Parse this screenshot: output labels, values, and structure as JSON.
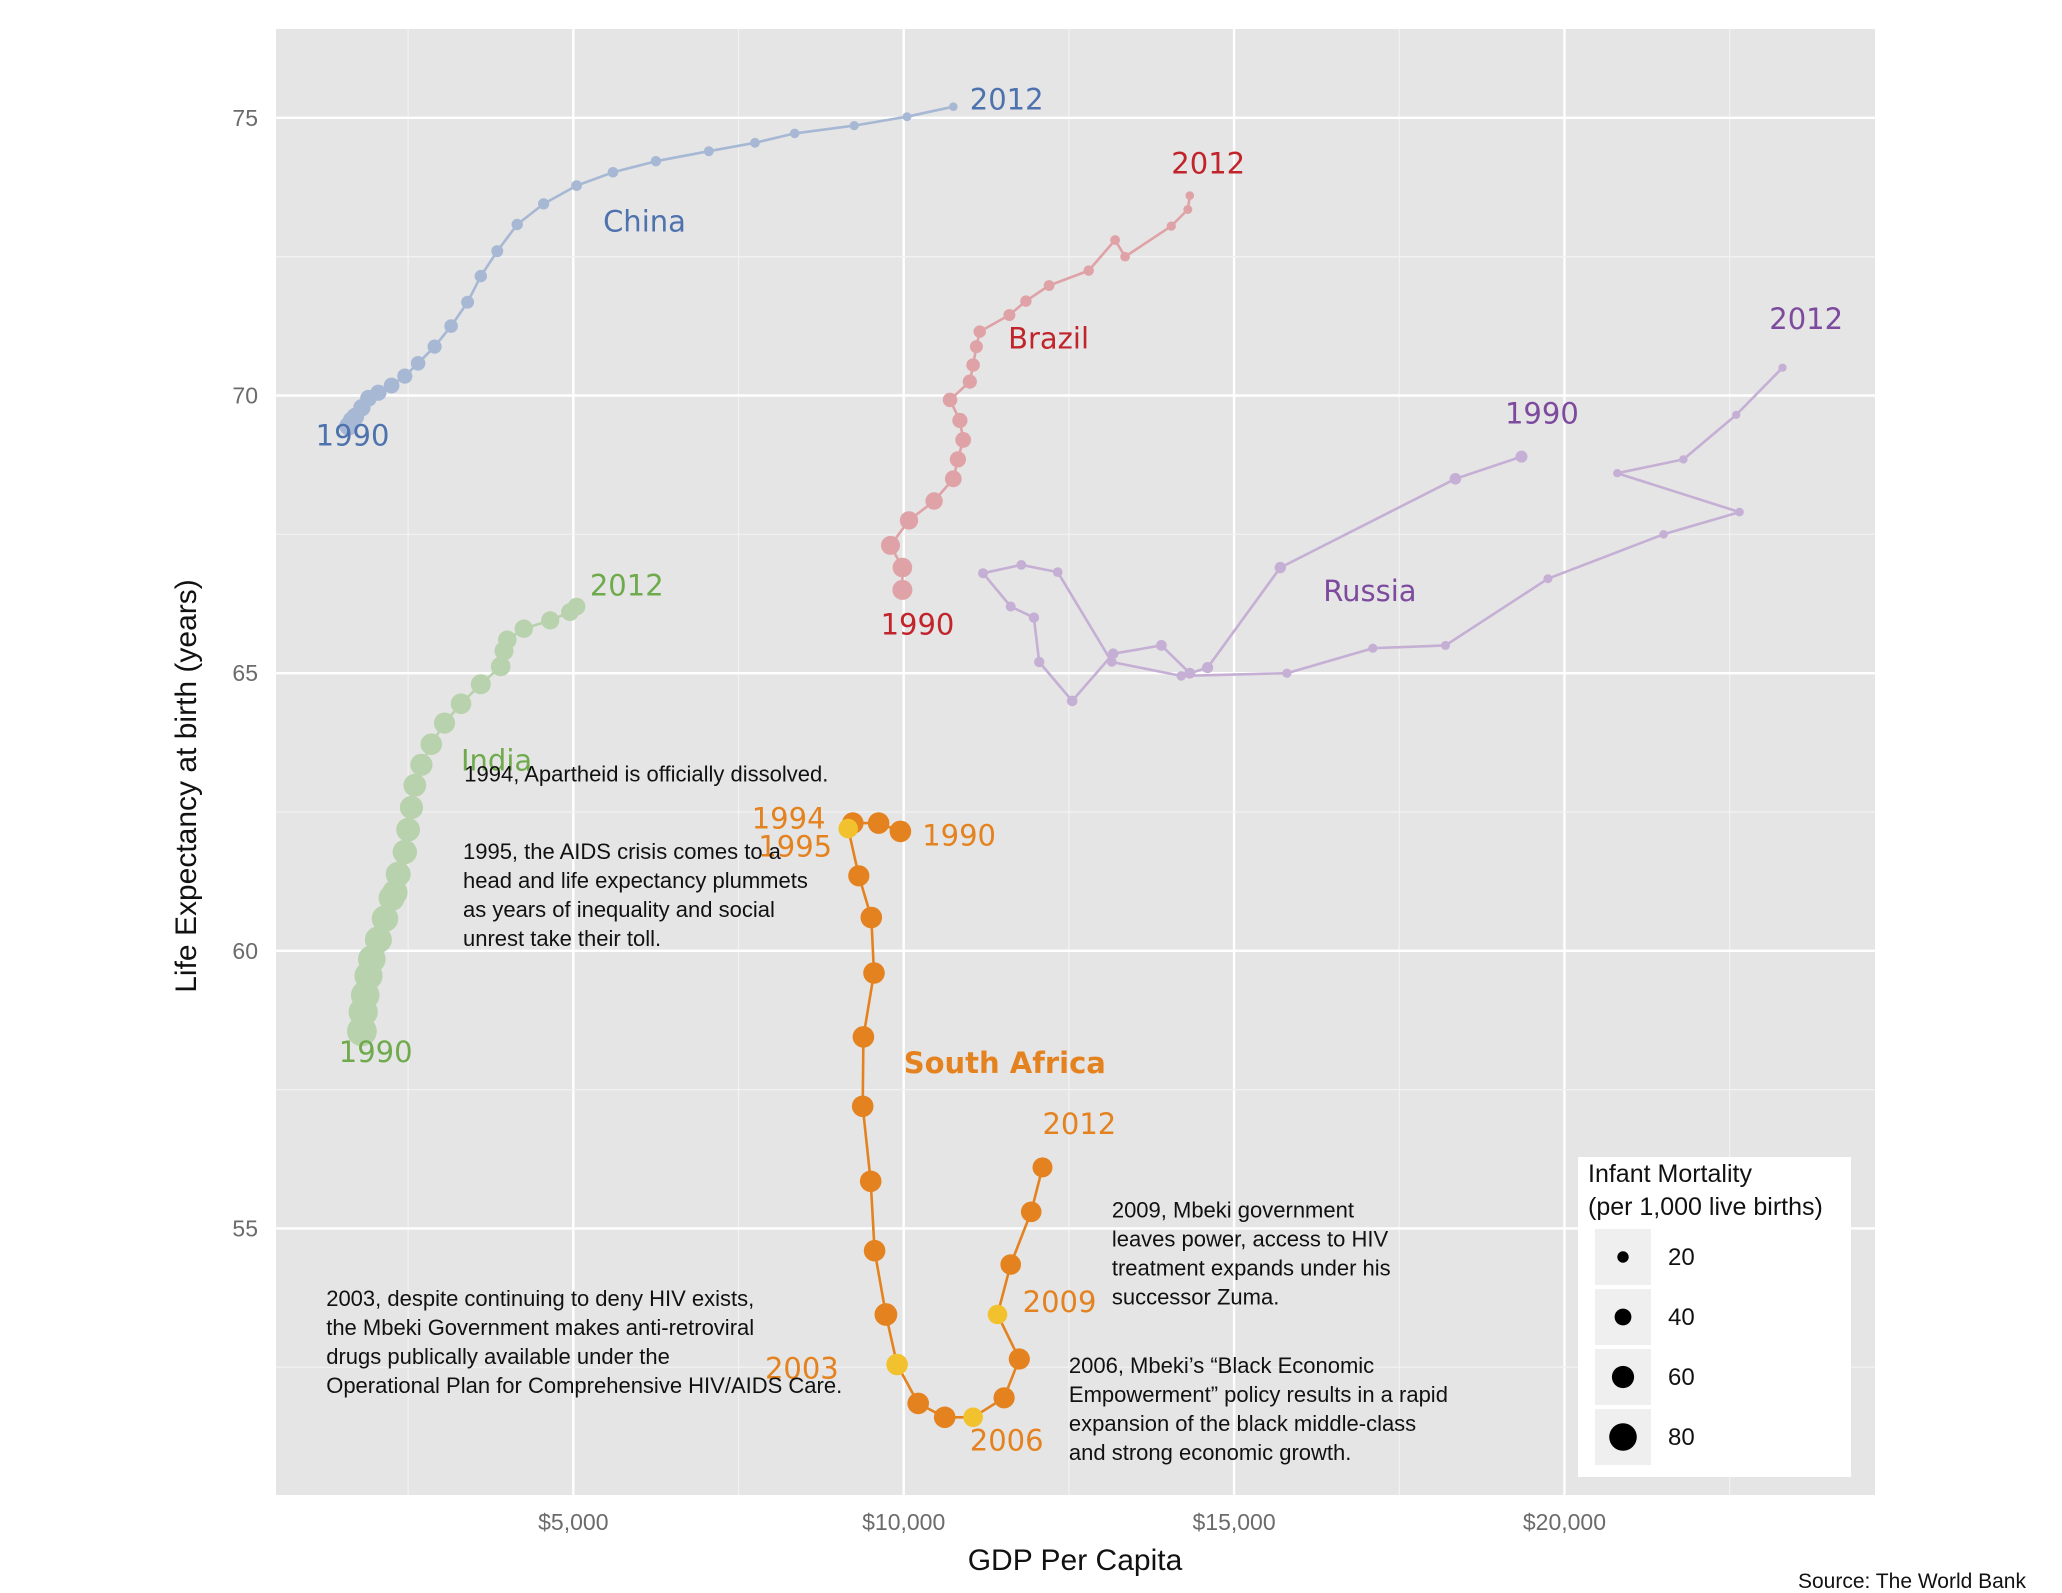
{
  "chart_data": {
    "type": "scatter",
    "xlabel": "GDP Per Capita",
    "ylabel": "Life Expectancy at birth (years)",
    "xlim": [
      500,
      24700
    ],
    "ylim": [
      50.2,
      76.6
    ],
    "x_ticks": [
      {
        "value": 5000,
        "label": "$5,000"
      },
      {
        "value": 10000,
        "label": "$10,000"
      },
      {
        "value": 15000,
        "label": "$15,000"
      },
      {
        "value": 20000,
        "label": "$20,000"
      }
    ],
    "y_ticks": [
      {
        "value": 55,
        "label": "55"
      },
      {
        "value": 60,
        "label": "60"
      },
      {
        "value": 65,
        "label": "65"
      },
      {
        "value": 70,
        "label": "70"
      },
      {
        "value": 75,
        "label": "75"
      }
    ],
    "grid": true,
    "series": [
      {
        "name": "China",
        "color": "#a7b8d4",
        "label_color": "#4d72ad",
        "x": [
          1600,
          1650,
          1700,
          1800,
          1900,
          2050,
          2250,
          2450,
          2650,
          2900,
          3150,
          3400,
          3600,
          3850,
          4150,
          4550,
          5050,
          5600,
          6250,
          7050,
          7750,
          8350,
          9250,
          10050,
          10750
        ],
        "y": [
          69.45,
          69.55,
          69.62,
          69.78,
          69.95,
          70.05,
          70.18,
          70.35,
          70.58,
          70.88,
          71.25,
          71.68,
          72.15,
          72.6,
          73.08,
          73.45,
          73.78,
          74.02,
          74.22,
          74.4,
          74.55,
          74.72,
          74.86,
          75.02,
          75.2
        ],
        "im": [
          48,
          46,
          44,
          42,
          40,
          38,
          36,
          34,
          32,
          30,
          28,
          26,
          24,
          22,
          20,
          19,
          18,
          17,
          16,
          15,
          14,
          13,
          12,
          11,
          10
        ],
        "name_label": {
          "text": "China",
          "x": 5450,
          "y": 72.95
        },
        "year_labels": [
          {
            "text": "1990",
            "x": 1100,
            "y": 69.1
          },
          {
            "text": "2012",
            "x": 11000,
            "y": 75.15
          }
        ]
      },
      {
        "name": "Brazil",
        "color": "#dfa2a6",
        "label_color": "#c2242c",
        "x": [
          9980,
          9980,
          9800,
          10080,
          10460,
          10750,
          10820,
          10900,
          10850,
          10700,
          11000,
          11050,
          11100,
          11150,
          11600,
          11850,
          12200,
          12800,
          13200,
          13350,
          14050,
          14300,
          14330
        ],
        "y": [
          66.5,
          66.9,
          67.3,
          67.75,
          68.1,
          68.5,
          68.85,
          69.2,
          69.55,
          69.92,
          70.25,
          70.55,
          70.88,
          71.15,
          71.45,
          71.7,
          71.98,
          72.25,
          72.8,
          72.5,
          73.05,
          73.35,
          73.6
        ],
        "im": [
          52,
          50,
          48,
          46,
          42,
          40,
          38,
          36,
          34,
          32,
          30,
          28,
          26,
          24,
          22,
          20,
          18,
          16,
          14,
          13,
          12,
          11,
          10
        ],
        "name_label": {
          "text": "Brazil",
          "x": 11580,
          "y": 70.85
        },
        "year_labels": [
          {
            "text": "1990",
            "x": 9650,
            "y": 65.7
          },
          {
            "text": "2012",
            "x": 14050,
            "y": 74.0
          }
        ]
      },
      {
        "name": "Russia",
        "color": "#c5afd4",
        "label_color": "#7d4a9e",
        "x": [
          19350,
          18350,
          15700,
          14600,
          14330,
          13900,
          13170,
          12550,
          12050,
          11970,
          11620,
          11200,
          11780,
          12330,
          13150,
          14200,
          15800,
          17100,
          18200,
          19750,
          21500,
          22650,
          20800,
          21800,
          22600,
          23300
        ],
        "y": [
          68.9,
          68.5,
          66.9,
          65.1,
          65.0,
          65.5,
          65.35,
          64.5,
          65.2,
          66.0,
          66.2,
          66.8,
          66.95,
          66.82,
          65.2,
          64.95,
          65.0,
          65.45,
          65.5,
          66.7,
          67.5,
          67.9,
          68.6,
          68.85,
          69.65,
          70.5
        ],
        "im": [
          22,
          21,
          20,
          19,
          18,
          18,
          17,
          17,
          16,
          16,
          15,
          15,
          14,
          14,
          13,
          13,
          12,
          12,
          11,
          11,
          10,
          10,
          9,
          9,
          8,
          8
        ],
        "name_label": {
          "text": "Russia",
          "x": 16350,
          "y": 66.3
        },
        "year_labels": [
          {
            "text": "1990",
            "x": 19100,
            "y": 69.5
          },
          {
            "text": "2012",
            "x": 23100,
            "y": 71.2
          }
        ]
      },
      {
        "name": "India",
        "color": "#b7d2ac",
        "label_color": "#6fab4d",
        "x": [
          1800,
          1820,
          1850,
          1900,
          1950,
          2050,
          2150,
          2250,
          2300,
          2350,
          2450,
          2500,
          2550,
          2600,
          2700,
          2850,
          3050,
          3300,
          3600,
          3900,
          3950,
          4000,
          4250,
          4650,
          4950,
          5050
        ],
        "y": [
          58.55,
          58.9,
          59.2,
          59.55,
          59.85,
          60.2,
          60.58,
          60.95,
          61.05,
          61.38,
          61.78,
          62.18,
          62.58,
          62.98,
          63.35,
          63.72,
          64.1,
          64.45,
          64.8,
          65.12,
          65.4,
          65.6,
          65.8,
          65.95,
          66.1,
          66.2
        ],
        "im": [
          88,
          86,
          84,
          82,
          80,
          78,
          76,
          74,
          72,
          70,
          68,
          66,
          64,
          62,
          60,
          58,
          56,
          54,
          52,
          50,
          48,
          47,
          46,
          45,
          44,
          43
        ],
        "name_label": {
          "text": "India",
          "x": 3300,
          "y": 63.25
        },
        "year_labels": [
          {
            "text": "1990",
            "x": 1450,
            "y": 58.0
          },
          {
            "text": "2012",
            "x": 5250,
            "y": 66.4
          }
        ]
      },
      {
        "name": "South Africa",
        "color": "#e4821f",
        "label_color": "#e4821f",
        "x": [
          9950,
          9620,
          9230,
          9160,
          9320,
          9510,
          9550,
          9390,
          9380,
          9500,
          9560,
          9730,
          9900,
          10220,
          10620,
          11050,
          11520,
          11750,
          11420,
          11620,
          11930,
          12100
        ],
        "y": [
          62.15,
          62.3,
          62.3,
          62.2,
          61.35,
          60.6,
          59.6,
          58.45,
          57.2,
          55.85,
          54.6,
          53.45,
          52.55,
          51.85,
          51.6,
          51.6,
          51.95,
          52.65,
          53.45,
          54.35,
          55.3,
          56.1
        ],
        "im": [
          58,
          58,
          58,
          50,
          56,
          58,
          58,
          58,
          58,
          58,
          58,
          62,
          58,
          58,
          58,
          50,
          56,
          56,
          50,
          54,
          54,
          52
        ],
        "highlight": [
          false,
          false,
          false,
          true,
          false,
          false,
          false,
          false,
          false,
          false,
          false,
          false,
          true,
          false,
          false,
          true,
          false,
          false,
          true,
          false,
          false,
          false
        ],
        "highlight_color": "#f2c12e",
        "name_label": {
          "text": "South Africa",
          "x": 10000,
          "y": 57.8
        },
        "year_labels": [
          {
            "text": "1990",
            "x": 10280,
            "y": 61.9
          },
          {
            "text": "1994",
            "x": 7700,
            "y": 62.2
          },
          {
            "text": "1995",
            "x": 7800,
            "y": 61.7
          },
          {
            "text": "2003",
            "x": 7900,
            "y": 52.3
          },
          {
            "text": "2006",
            "x": 11000,
            "y": 51.0
          },
          {
            "text": "2009",
            "x": 11800,
            "y": 53.5
          },
          {
            "text": "2012",
            "x": 12100,
            "y": 56.7
          }
        ]
      }
    ],
    "annotations": [
      {
        "lines": [
          "1994, Apartheid is officially dissolved."
        ],
        "x": 3350,
        "y": 63.05
      },
      {
        "lines": [
          "1995, the AIDS crisis comes to a",
          "head and life expectancy plummets",
          "as years of inequality and social",
          "unrest take their toll."
        ],
        "x": 3330,
        "y": 61.65
      },
      {
        "lines": [
          "2003, despite continuing to deny HIV exists,",
          "the Mbeki Government makes anti-retroviral",
          "drugs publically available under the",
          "Operational Plan for Comprehensive HIV/AIDS Care."
        ],
        "x": 1260,
        "y": 53.6
      },
      {
        "lines": [
          "2009, Mbeki government",
          "leaves power, access to HIV",
          "treatment expands under his",
          "successor Zuma."
        ],
        "x": 13150,
        "y": 55.2
      },
      {
        "lines": [
          "2006, Mbeki’s “Black Economic",
          "Empowerment” policy results in a rapid",
          "expansion of the black middle-class",
          "and strong economic growth."
        ],
        "x": 12500,
        "y": 52.4
      }
    ],
    "legend": {
      "title_lines": [
        "Infant Mortality",
        "(per 1,000 live births)"
      ],
      "placement": "bottom-right",
      "items": [
        {
          "value": 20,
          "label": "20"
        },
        {
          "value": 40,
          "label": "40"
        },
        {
          "value": 60,
          "label": "60"
        },
        {
          "value": 80,
          "label": "80"
        }
      ]
    },
    "source": "Source: The World Bank"
  }
}
